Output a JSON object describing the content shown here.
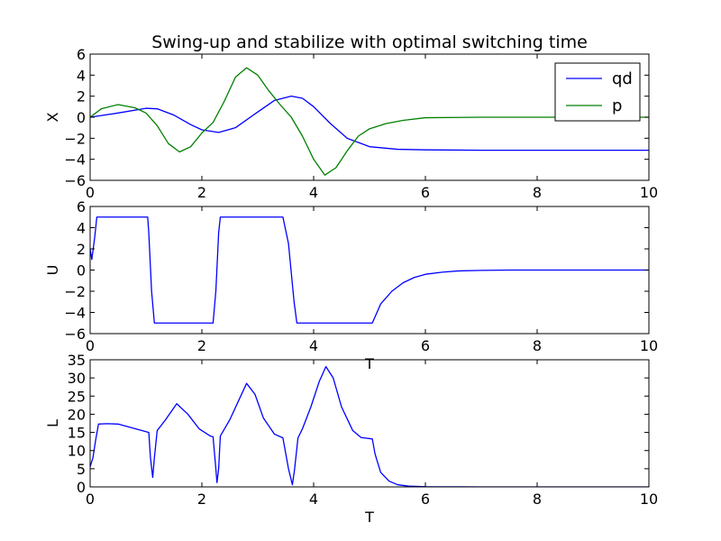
{
  "figure": {
    "title": "Swing-up and stabilize with optimal switching time"
  },
  "chart_data": [
    {
      "type": "line",
      "ylabel": "X",
      "xlabel": "",
      "xlim": [
        0,
        10
      ],
      "ylim": [
        -6,
        6
      ],
      "xticks": [
        "0",
        "2",
        "4",
        "6",
        "8",
        "10"
      ],
      "yticks": [
        "6",
        "4",
        "2",
        "0",
        "−2",
        "−4",
        "−6"
      ],
      "grid": false,
      "legend": "top-right",
      "series": [
        {
          "name": "qd",
          "color": "#0000ff",
          "x": [
            0,
            0.5,
            1.0,
            1.2,
            1.5,
            1.8,
            2.0,
            2.3,
            2.6,
            3.0,
            3.3,
            3.6,
            3.8,
            4.0,
            4.3,
            4.6,
            5.0,
            5.5,
            6.0,
            7.0,
            8.0,
            9.0,
            10.0
          ],
          "y": [
            0,
            0.4,
            0.85,
            0.8,
            0.2,
            -0.7,
            -1.2,
            -1.45,
            -1.0,
            0.5,
            1.6,
            2.0,
            1.8,
            1.0,
            -0.6,
            -2.0,
            -2.8,
            -3.05,
            -3.1,
            -3.14,
            -3.14,
            -3.14,
            -3.14
          ]
        },
        {
          "name": "p",
          "color": "#008000",
          "x": [
            0,
            0.2,
            0.5,
            0.8,
            1.0,
            1.2,
            1.4,
            1.6,
            1.8,
            2.0,
            2.2,
            2.4,
            2.6,
            2.8,
            3.0,
            3.2,
            3.4,
            3.6,
            3.8,
            4.0,
            4.2,
            4.4,
            4.6,
            4.8,
            5.0,
            5.3,
            5.6,
            6.0,
            7.0,
            8.0,
            9.0,
            10.0
          ],
          "y": [
            0,
            0.8,
            1.2,
            0.9,
            0.4,
            -0.8,
            -2.5,
            -3.3,
            -2.8,
            -1.5,
            -0.5,
            1.5,
            3.8,
            4.7,
            4.0,
            2.5,
            1.2,
            0.0,
            -1.8,
            -4.0,
            -5.5,
            -4.8,
            -3.2,
            -1.8,
            -1.1,
            -0.6,
            -0.3,
            -0.05,
            0,
            0,
            0,
            0
          ]
        }
      ]
    },
    {
      "type": "line",
      "ylabel": "U",
      "xlabel": "T",
      "xlim": [
        0,
        10
      ],
      "ylim": [
        -6,
        6
      ],
      "xticks": [
        "0",
        "2",
        "4",
        "6",
        "8",
        "10"
      ],
      "yticks": [
        "6",
        "4",
        "2",
        "0",
        "−2",
        "−4",
        "−6"
      ],
      "grid": false,
      "series": [
        {
          "color": "#0000ff",
          "x": [
            0,
            0.03,
            0.08,
            0.12,
            1.03,
            1.05,
            1.1,
            1.15,
            2.2,
            2.25,
            2.3,
            2.33,
            3.45,
            3.55,
            3.65,
            3.7,
            5.05,
            5.2,
            5.4,
            5.6,
            5.8,
            6.0,
            6.3,
            6.6,
            7.0,
            7.5,
            8.0,
            9.0,
            10.0
          ],
          "y": [
            2,
            1.0,
            3.0,
            5,
            5,
            3.5,
            -2.0,
            -5,
            -5,
            -2.0,
            3.5,
            5,
            5,
            2.5,
            -3.0,
            -5,
            -5,
            -3.2,
            -2.0,
            -1.2,
            -0.7,
            -0.4,
            -0.2,
            -0.08,
            -0.03,
            0,
            0,
            0,
            0
          ]
        }
      ]
    },
    {
      "type": "line",
      "ylabel": "L",
      "xlabel": "T",
      "xlim": [
        0,
        10
      ],
      "ylim": [
        0,
        35
      ],
      "xticks": [
        "0",
        "2",
        "4",
        "6",
        "8",
        "10"
      ],
      "yticks": [
        "35",
        "30",
        "25",
        "20",
        "15",
        "10",
        "5",
        "0"
      ],
      "grid": false,
      "series": [
        {
          "color": "#0000ff",
          "x": [
            0,
            0.05,
            0.1,
            0.15,
            0.3,
            0.5,
            1.0,
            1.05,
            1.08,
            1.12,
            1.15,
            1.2,
            1.35,
            1.55,
            1.75,
            1.95,
            2.15,
            2.2,
            2.25,
            2.27,
            2.3,
            2.33,
            2.5,
            2.65,
            2.8,
            2.95,
            3.1,
            3.3,
            3.45,
            3.55,
            3.62,
            3.66,
            3.72,
            3.8,
            3.95,
            4.1,
            4.22,
            4.35,
            4.5,
            4.7,
            4.85,
            5.05,
            5.1,
            5.2,
            5.35,
            5.5,
            5.7,
            6.0,
            7.0,
            8.0,
            9.0,
            10.0
          ],
          "y": [
            5.5,
            8,
            13,
            17.3,
            17.4,
            17.3,
            15.2,
            15.0,
            8.0,
            2.6,
            8.0,
            15.5,
            18.5,
            22.9,
            20.0,
            16.0,
            14.0,
            13.8,
            5.0,
            1.2,
            5.0,
            14.0,
            18.5,
            23.5,
            28.5,
            25.5,
            19.0,
            14.5,
            13.5,
            5.0,
            0.6,
            5.0,
            13.5,
            16.0,
            22.0,
            29.0,
            33.1,
            30.0,
            22.0,
            15.5,
            13.6,
            13.2,
            9.0,
            4.0,
            1.6,
            0.6,
            0.2,
            0.05,
            0,
            0,
            0,
            0
          ]
        }
      ]
    }
  ]
}
